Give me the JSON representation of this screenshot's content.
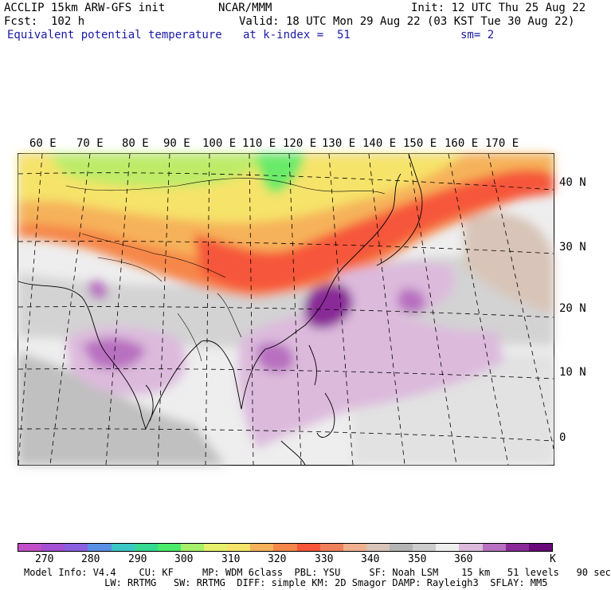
{
  "header": {
    "title": "ACCLIP 15km ARW-GFS init",
    "org": "NCAR/MMM",
    "init": "Init: 12 UTC Thu 25 Aug 22",
    "fcst": "Fcst:  102 h",
    "valid": "Valid: 18 UTC Mon 29 Aug 22 (03 KST Tue 30 Aug 22)",
    "field": "Equivalent potential temperature",
    "level": "at k-index =  51",
    "smooth": "sm= 2"
  },
  "map": {
    "lon_labels": [
      "60 E",
      "70 E",
      "80 E",
      "90 E",
      "100 E",
      "110 E",
      "120 E",
      "130 E",
      "140 E",
      "150 E",
      "160 E",
      "170 E"
    ],
    "lat_labels": [
      "40 N",
      "30 N",
      "20 N",
      "10 N",
      "0"
    ]
  },
  "colorbar": {
    "colors": [
      "#c24fc7",
      "#a350d2",
      "#8a5fe0",
      "#5a8fe6",
      "#3cc7c7",
      "#35d98f",
      "#49eb69",
      "#a6f06a",
      "#e6f06a",
      "#f6e36a",
      "#f6b25a",
      "#f6864a",
      "#f6563a",
      "#f0805a",
      "#f0b090",
      "#d8c4b8",
      "#b4b4b4",
      "#cccccc",
      "#eeeeee",
      "#dcbadc",
      "#b870c0",
      "#8a2a98",
      "#6a0a7a"
    ],
    "labels": [
      "270",
      "280",
      "290",
      "300",
      "310",
      "320",
      "330",
      "340",
      "350",
      "360",
      "K"
    ]
  },
  "footer": {
    "line1": "Model Info: V4.4    CU: KF     MP: WDM 6class  PBL: YSU     SF: Noah LSM    15 km   51 levels   90 sec",
    "line2": "              LW: RRTMG   SW: RRTMG  DIFF: simple KM: 2D Smagor DAMP: Rayleigh3  SFLAY: MM5"
  }
}
